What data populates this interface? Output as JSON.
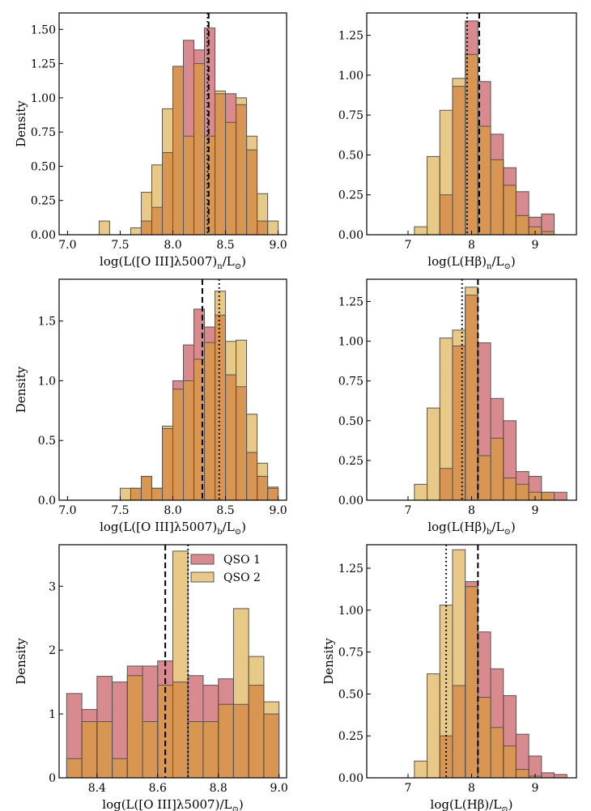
{
  "figure": {
    "legend_labels": [
      "QSO 1",
      "QSO 2"
    ]
  },
  "colors": {
    "qso1": "#d98a8e",
    "qso2": "#e8c987",
    "overlap": "#d99652",
    "edge": "#555555",
    "median_line": "#000000"
  },
  "chart_data": [
    {
      "type": "bar",
      "subtype": "histogram-overlay",
      "xlabel": "log(L([O III]λ5007)n/L⊙)",
      "ylabel": "Density",
      "xlim": [
        6.92,
        9.08
      ],
      "ylim": [
        0,
        1.62
      ],
      "xticks": [
        7.0,
        7.5,
        8.0,
        8.5,
        9.0
      ],
      "xtick_labels": [
        "7.0",
        "7.5",
        "8.0",
        "8.5",
        "9.0"
      ],
      "yticks": [
        0,
        0.25,
        0.5,
        0.75,
        1.0,
        1.25,
        1.5
      ],
      "ytick_labels": [
        "0.00",
        "0.25",
        "0.50",
        "0.75",
        "1.00",
        "1.25",
        "1.50"
      ],
      "bin_edges": [
        7.3,
        7.4,
        7.5,
        7.6,
        7.7,
        7.8,
        7.9,
        8.0,
        8.1,
        8.2,
        8.3,
        8.4,
        8.5,
        8.6,
        8.7,
        8.8,
        8.9,
        9.0
      ],
      "series": [
        {
          "name": "QSO 1",
          "values": [
            0,
            0,
            0,
            0,
            0.1,
            0.2,
            0.6,
            1.23,
            1.42,
            1.35,
            1.51,
            1.03,
            1.03,
            0.95,
            0.62,
            0.1,
            0
          ]
        },
        {
          "name": "QSO 2",
          "values": [
            0.1,
            0,
            0,
            0.05,
            0.31,
            0.51,
            0.92,
            1.23,
            0.72,
            1.25,
            0.72,
            1.05,
            0.82,
            1.0,
            0.72,
            0.3,
            0.1
          ]
        }
      ],
      "vlines": [
        {
          "x": 8.34,
          "style": "dashed"
        },
        {
          "x": 8.33,
          "style": "dotted"
        }
      ]
    },
    {
      "type": "bar",
      "subtype": "histogram-overlay",
      "xlabel": "log(L(Hβ)n/L⊙)",
      "ylabel": "",
      "xlim": [
        6.35,
        9.65
      ],
      "ylim": [
        0,
        1.39
      ],
      "xticks": [
        7,
        8,
        9
      ],
      "xtick_labels": [
        "7",
        "8",
        "9"
      ],
      "yticks": [
        0,
        0.25,
        0.5,
        0.75,
        1.0,
        1.25
      ],
      "ytick_labels": [
        "0.00",
        "0.25",
        "0.50",
        "0.75",
        "1.00",
        "1.25"
      ],
      "bin_edges": [
        7.1,
        7.3,
        7.5,
        7.7,
        7.9,
        8.1,
        8.3,
        8.5,
        8.7,
        8.9,
        9.1,
        9.3,
        9.5
      ],
      "series": [
        {
          "name": "QSO 1",
          "values": [
            0,
            0,
            0.25,
            0.93,
            1.34,
            0.96,
            0.63,
            0.42,
            0.27,
            0.11,
            0.13,
            0
          ]
        },
        {
          "name": "QSO 2",
          "values": [
            0.05,
            0.49,
            0.78,
            0.98,
            1.13,
            0.68,
            0.47,
            0.31,
            0.12,
            0.05,
            0.02,
            0
          ]
        }
      ],
      "vlines": [
        {
          "x": 8.12,
          "style": "dashed"
        },
        {
          "x": 7.93,
          "style": "dotted"
        }
      ]
    },
    {
      "type": "bar",
      "subtype": "histogram-overlay",
      "xlabel": "log(L([O III]λ5007)b/L⊙)",
      "ylabel": "Density",
      "xlim": [
        6.92,
        9.08
      ],
      "ylim": [
        0,
        1.85
      ],
      "xticks": [
        7.0,
        7.5,
        8.0,
        8.5,
        9.0
      ],
      "xtick_labels": [
        "7.0",
        "7.5",
        "8.0",
        "8.5",
        "9.0"
      ],
      "yticks": [
        0,
        0.5,
        1.0,
        1.5
      ],
      "ytick_labels": [
        "0.0",
        "0.5",
        "1.0",
        "1.5"
      ],
      "bin_edges": [
        7.5,
        7.6,
        7.7,
        7.8,
        7.9,
        8.0,
        8.1,
        8.2,
        8.3,
        8.4,
        8.5,
        8.6,
        8.7,
        8.8,
        8.9,
        9.0
      ],
      "series": [
        {
          "name": "QSO 1",
          "values": [
            0,
            0.1,
            0.2,
            0.1,
            0.6,
            1.0,
            1.3,
            1.6,
            1.45,
            1.55,
            1.05,
            0.95,
            0.4,
            0.2,
            0.1
          ]
        },
        {
          "name": "QSO 2",
          "values": [
            0.1,
            0.1,
            0.2,
            0.1,
            0.62,
            0.93,
            1.0,
            1.18,
            1.32,
            1.75,
            1.33,
            1.34,
            0.72,
            0.31,
            0.11
          ]
        }
      ],
      "vlines": [
        {
          "x": 8.28,
          "style": "dashed"
        },
        {
          "x": 8.44,
          "style": "dotted"
        }
      ]
    },
    {
      "type": "bar",
      "subtype": "histogram-overlay",
      "xlabel": "log(L(Hβ)b/L⊙)",
      "ylabel": "",
      "xlim": [
        6.35,
        9.65
      ],
      "ylim": [
        0,
        1.39
      ],
      "xticks": [
        7,
        8,
        9
      ],
      "xtick_labels": [
        "7",
        "8",
        "9"
      ],
      "yticks": [
        0,
        0.25,
        0.5,
        0.75,
        1.0,
        1.25
      ],
      "ytick_labels": [
        "0.00",
        "0.25",
        "0.50",
        "0.75",
        "1.00",
        "1.25"
      ],
      "bin_edges": [
        7.1,
        7.3,
        7.5,
        7.7,
        7.9,
        8.1,
        8.3,
        8.5,
        8.7,
        8.9,
        9.1,
        9.3,
        9.5
      ],
      "series": [
        {
          "name": "QSO 1",
          "values": [
            0,
            0,
            0.2,
            0.97,
            1.29,
            0.99,
            0.64,
            0.5,
            0.18,
            0.15,
            0.05,
            0.05
          ]
        },
        {
          "name": "QSO 2",
          "values": [
            0.1,
            0.58,
            1.02,
            1.07,
            1.34,
            0.28,
            0.39,
            0.14,
            0.1,
            0.05,
            0.05,
            0
          ]
        }
      ],
      "vlines": [
        {
          "x": 8.1,
          "style": "dashed"
        },
        {
          "x": 7.85,
          "style": "dotted"
        }
      ]
    },
    {
      "type": "bar",
      "subtype": "histogram-overlay",
      "xlabel": "log(L([O III]λ5007)/L⊙)",
      "ylabel": "Density",
      "xlim": [
        8.275,
        9.025
      ],
      "ylim": [
        0,
        3.65
      ],
      "xticks": [
        8.4,
        8.6,
        8.8,
        9.0
      ],
      "xtick_labels": [
        "8.4",
        "8.6",
        "8.8",
        "9.0"
      ],
      "yticks": [
        0,
        1,
        2,
        3
      ],
      "ytick_labels": [
        "0",
        "1",
        "2",
        "3"
      ],
      "bin_edges": [
        8.3,
        8.35,
        8.4,
        8.45,
        8.5,
        8.55,
        8.6,
        8.65,
        8.7,
        8.75,
        8.8,
        8.85,
        8.9,
        8.95,
        9.0
      ],
      "series": [
        {
          "name": "QSO 1",
          "values": [
            1.32,
            1.07,
            1.59,
            1.5,
            1.75,
            1.75,
            1.83,
            1.5,
            1.6,
            1.45,
            1.55,
            1.15,
            1.45,
            1.0
          ]
        },
        {
          "name": "QSO 2",
          "values": [
            0.3,
            0.88,
            0.88,
            0.3,
            1.6,
            0.88,
            1.45,
            3.55,
            0.88,
            0.88,
            1.15,
            2.65,
            1.9,
            1.19
          ]
        }
      ],
      "vlines": [
        {
          "x": 8.625,
          "style": "dashed"
        },
        {
          "x": 8.7,
          "style": "dotted"
        }
      ],
      "legend": {
        "position": "upper-right",
        "entries": [
          "QSO 1",
          "QSO 2"
        ]
      }
    },
    {
      "type": "bar",
      "subtype": "histogram-overlay",
      "xlabel": "log(L(Hβ)/L⊙)",
      "ylabel": "Density",
      "xlim": [
        6.35,
        9.65
      ],
      "ylim": [
        0,
        1.39
      ],
      "xticks": [
        7,
        8,
        9
      ],
      "xtick_labels": [
        "7",
        "8",
        "9"
      ],
      "yticks": [
        0,
        0.25,
        0.5,
        0.75,
        1.0,
        1.25
      ],
      "ytick_labels": [
        "0.00",
        "0.25",
        "0.50",
        "0.75",
        "1.00",
        "1.25"
      ],
      "bin_edges": [
        7.1,
        7.3,
        7.5,
        7.7,
        7.9,
        8.1,
        8.3,
        8.5,
        8.7,
        8.9,
        9.1,
        9.3,
        9.5
      ],
      "series": [
        {
          "name": "QSO 1",
          "values": [
            0,
            0,
            0.25,
            0.55,
            1.17,
            0.87,
            0.65,
            0.49,
            0.26,
            0.13,
            0.03,
            0.02
          ]
        },
        {
          "name": "QSO 2",
          "values": [
            0.1,
            0.62,
            1.03,
            1.36,
            1.14,
            0.48,
            0.3,
            0.19,
            0.05,
            0.01,
            0,
            0
          ]
        }
      ],
      "vlines": [
        {
          "x": 8.1,
          "style": "dashed"
        },
        {
          "x": 7.6,
          "style": "dotted"
        }
      ]
    }
  ]
}
